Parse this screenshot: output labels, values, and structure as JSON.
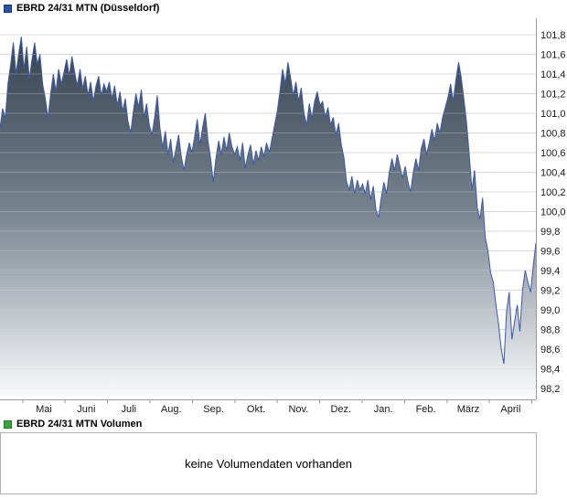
{
  "price_chart": {
    "marker_color": "#2a52a2",
    "marker_border": "#16307a",
    "line_color": "#3c59ad",
    "area_top_color": "#2e3a47",
    "area_mid_color": "#76838f",
    "area_bottom_color": "#fcfcfd",
    "grid_color": "#d9d9d9",
    "axis_color": "#9a9a9a"
  },
  "chart_data": {
    "type": "area",
    "title": "EBRD 24/31 MTN (Düsseldorf)",
    "xlabel": "",
    "ylabel": "",
    "ylim": [
      98.2,
      101.8
    ],
    "grid": true,
    "legend_position": "none",
    "x_tick_labels": [
      "Mai",
      "Juni",
      "Juli",
      "Aug.",
      "Sep.",
      "Okt.",
      "Nov.",
      "Dez.",
      "Jan.",
      "Feb.",
      "März",
      "April"
    ],
    "y_tick_labels": [
      "101,8",
      "101,6",
      "101,4",
      "101,2",
      "101,0",
      "100,8",
      "100,6",
      "100,4",
      "100,2",
      "100,0",
      "99,8",
      "99,6",
      "99,4",
      "99,2",
      "99,0",
      "98,8",
      "98,6",
      "98,4",
      "98,2"
    ],
    "series": [
      {
        "name": "EBRD 24/31 MTN",
        "values": [
          100.85,
          101.05,
          100.95,
          101.3,
          101.5,
          101.72,
          101.4,
          101.6,
          101.78,
          101.45,
          101.68,
          101.35,
          101.55,
          101.72,
          101.5,
          101.6,
          101.3,
          101.15,
          100.95,
          101.2,
          101.4,
          101.22,
          101.45,
          101.3,
          101.42,
          101.55,
          101.38,
          101.58,
          101.42,
          101.28,
          101.45,
          101.25,
          101.38,
          101.18,
          101.32,
          101.12,
          101.28,
          101.38,
          101.18,
          101.3,
          101.22,
          101.32,
          101.15,
          101.28,
          101.08,
          101.22,
          101.02,
          101.15,
          100.92,
          100.8,
          101.02,
          101.2,
          101.06,
          101.24,
          100.96,
          101.1,
          100.88,
          100.78,
          100.96,
          101.18,
          100.85,
          100.65,
          100.82,
          100.58,
          100.74,
          100.5,
          100.64,
          100.78,
          100.56,
          100.42,
          100.58,
          100.7,
          100.6,
          100.76,
          100.94,
          100.68,
          100.86,
          101.0,
          100.72,
          100.54,
          100.3,
          100.54,
          100.72,
          100.58,
          100.76,
          100.62,
          100.8,
          100.66,
          100.58,
          100.66,
          100.52,
          100.7,
          100.44,
          100.58,
          100.68,
          100.48,
          100.62,
          100.52,
          100.66,
          100.56,
          100.7,
          100.6,
          100.74,
          100.88,
          101.02,
          101.22,
          101.45,
          101.3,
          101.52,
          101.36,
          101.18,
          101.32,
          101.12,
          101.26,
          101.0,
          100.88,
          101.1,
          100.95,
          101.12,
          101.22,
          101.08,
          101.12,
          100.96,
          101.06,
          100.88,
          100.96,
          100.78,
          100.9,
          100.68,
          100.55,
          100.3,
          100.22,
          100.36,
          100.18,
          100.32,
          100.22,
          100.28,
          100.18,
          100.32,
          100.12,
          100.26,
          100.02,
          99.94,
          100.14,
          100.3,
          100.18,
          100.4,
          100.54,
          100.42,
          100.58,
          100.46,
          100.34,
          100.46,
          100.3,
          100.2,
          100.4,
          100.54,
          100.42,
          100.64,
          100.74,
          100.58,
          100.7,
          100.84,
          100.72,
          100.9,
          100.8,
          100.96,
          101.06,
          101.16,
          101.3,
          101.12,
          101.34,
          101.52,
          101.36,
          101.14,
          100.9,
          100.58,
          100.22,
          100.42,
          100.04,
          99.92,
          100.14,
          99.74,
          99.6,
          99.38,
          99.28,
          99.05,
          98.85,
          98.6,
          98.45,
          98.98,
          99.18,
          98.7,
          98.88,
          99.05,
          98.78,
          99.2,
          99.4,
          99.28,
          99.18,
          99.45,
          99.68
        ]
      }
    ]
  },
  "volume_section": {
    "title": "EBRD 24/31 MTN Volumen",
    "marker_color": "#3da23d",
    "marker_border": "#1f7a1f",
    "message": "keine Volumendaten vorhanden"
  }
}
